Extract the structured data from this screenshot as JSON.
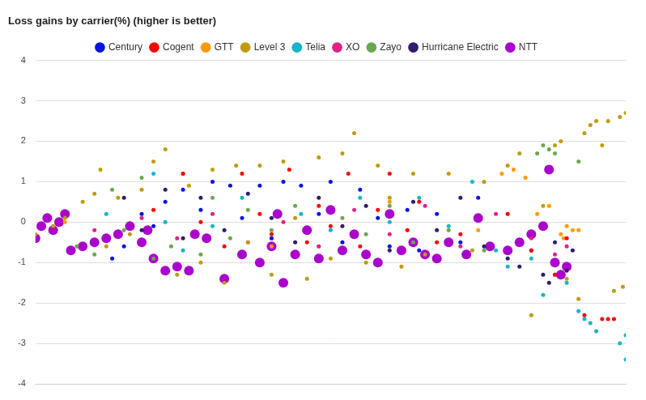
{
  "chart_data": {
    "type": "scatter",
    "title": "Loss gains by carrier(%) (higher is better)",
    "xlim": [
      0,
      100
    ],
    "ylim": [
      -4,
      4
    ],
    "yticks": [
      -4,
      -3,
      -2,
      -1,
      0,
      1,
      2,
      3,
      4
    ],
    "grid": true,
    "legend": "top",
    "tick_labels": "y",
    "series": [
      {
        "name": "Century",
        "color": "#0a14e0",
        "marker": "circle",
        "x": [
          13,
          15,
          18,
          20,
          22,
          25,
          28,
          30,
          33,
          35,
          38,
          40,
          42,
          45,
          48,
          50,
          52,
          55,
          58,
          60,
          63,
          65,
          68,
          72,
          75
        ],
        "values": [
          -0.9,
          -0.6,
          0.2,
          -0.1,
          0.5,
          0.8,
          0.3,
          1.0,
          0.9,
          0.1,
          0.9,
          -0.4,
          1.0,
          0.9,
          0.2,
          1.0,
          -0.5,
          0.8,
          0.1,
          -0.6,
          0.3,
          -0.7,
          0.2,
          -0.5,
          0.6
        ]
      },
      {
        "name": "Cogent",
        "color": "#ff0000",
        "marker": "circle",
        "x": [
          20,
          25,
          28,
          32,
          35,
          38,
          40,
          43,
          46,
          48,
          50,
          53,
          55,
          58,
          60,
          63,
          65,
          68,
          72,
          80,
          84,
          88,
          90,
          93,
          96,
          97,
          98
        ],
        "values": [
          0.3,
          1.2,
          0.0,
          -0.6,
          1.2,
          0.2,
          -0.3,
          1.3,
          -0.5,
          0.4,
          -0.1,
          1.2,
          -0.6,
          0.3,
          1.2,
          -0.2,
          0.5,
          -0.5,
          -0.3,
          0.2,
          -0.7,
          -1.3,
          -0.4,
          -2.3,
          -2.4,
          -2.4,
          -2.4
        ]
      },
      {
        "name": "GTT",
        "color": "#ff9900",
        "marker": "circle",
        "x": [
          5,
          40,
          60,
          75,
          79,
          81,
          83,
          85,
          87,
          89,
          89.5,
          90,
          91,
          92
        ],
        "values": [
          0.0,
          -0.6,
          0.5,
          -0.2,
          1.2,
          1.3,
          1.1,
          0.2,
          0.4,
          -0.3,
          -0.4,
          -0.1,
          -0.2,
          -0.2
        ]
      },
      {
        "name": "Level 3",
        "color": "#bf9b0b",
        "marker": "circle",
        "x": [
          0,
          3,
          5,
          8,
          10,
          11,
          12,
          14,
          16,
          18,
          20,
          22,
          24,
          26,
          28,
          30,
          32,
          34,
          36,
          38,
          40,
          42,
          44,
          46,
          48,
          50,
          52,
          54,
          56,
          58,
          60,
          62,
          64,
          66,
          70,
          74,
          76,
          80,
          82,
          84,
          86,
          88,
          89,
          90,
          92,
          93,
          94,
          95,
          96,
          97,
          98,
          99,
          99.5,
          100
        ],
        "values": [
          -0.3,
          -0.1,
          0.1,
          0.5,
          0.7,
          1.3,
          -0.6,
          0.6,
          -0.3,
          0.8,
          1.5,
          1.8,
          -1.3,
          0.9,
          -1.0,
          1.3,
          -1.5,
          1.4,
          -0.5,
          1.4,
          -1.3,
          1.5,
          0.1,
          -1.4,
          1.6,
          -0.9,
          1.7,
          2.2,
          -1.0,
          1.4,
          0.6,
          -1.1,
          1.2,
          -0.8,
          1.2,
          -0.7,
          1.0,
          1.4,
          1.7,
          -2.3,
          0.4,
          1.9,
          2.0,
          -1.4,
          -1.9,
          2.2,
          2.4,
          2.5,
          1.9,
          2.5,
          -1.7,
          2.6,
          -1.6,
          2.7
        ]
      },
      {
        "name": "Telia",
        "color": "#12b5cb",
        "marker": "circle",
        "x": [
          12,
          20,
          22,
          25,
          30,
          35,
          40,
          45,
          50,
          55,
          60,
          65,
          70,
          74,
          78,
          80,
          84,
          86,
          88,
          90,
          92,
          93,
          94,
          95,
          99,
          100,
          100
        ],
        "values": [
          0.2,
          1.2,
          0.0,
          -0.7,
          -0.1,
          0.6,
          -0.4,
          0.2,
          -0.2,
          0.6,
          0.0,
          0.6,
          -0.1,
          1.0,
          -0.7,
          -1.1,
          -0.9,
          -1.8,
          -1.3,
          -1.5,
          -2.2,
          -2.4,
          -2.5,
          -2.7,
          -3.0,
          -3.4,
          -2.8
        ]
      },
      {
        "name": "XO",
        "color": "#e0218a",
        "marker": "circle",
        "x": [
          10,
          18,
          24,
          30,
          36,
          42,
          48,
          54,
          60,
          66,
          72,
          78,
          84,
          88,
          90
        ],
        "values": [
          -0.2,
          0.1,
          -0.4,
          0.2,
          -0.5,
          0.0,
          -0.6,
          0.3,
          -0.3,
          0.4,
          -0.6,
          0.2,
          -0.4,
          -0.8,
          -0.6
        ]
      },
      {
        "name": "Zayo",
        "color": "#6aa84f",
        "marker": "circle",
        "x": [
          7,
          10,
          13,
          15,
          18,
          20,
          23,
          25,
          28,
          30,
          33,
          36,
          40,
          44,
          48,
          52,
          56,
          60,
          64,
          70,
          76,
          85,
          86,
          87,
          88,
          92
        ],
        "values": [
          -0.6,
          -0.8,
          0.8,
          -0.2,
          1.1,
          -0.9,
          -0.6,
          1.2,
          -0.8,
          0.6,
          -0.4,
          0.3,
          -0.2,
          0.4,
          -0.6,
          0.1,
          -0.3,
          0.4,
          -0.5,
          -0.2,
          -0.7,
          1.7,
          1.9,
          1.8,
          1.7,
          1.5
        ]
      },
      {
        "name": "Hurricane Electric",
        "color": "#311b73",
        "marker": "circle",
        "x": [
          15,
          18,
          22,
          25,
          28,
          32,
          36,
          40,
          44,
          48,
          52,
          56,
          60,
          64,
          68,
          72,
          76,
          80,
          82,
          84,
          86,
          87,
          88,
          90,
          91
        ],
        "values": [
          0.6,
          -0.2,
          0.8,
          -0.4,
          0.6,
          -0.2,
          0.7,
          0.1,
          -0.5,
          0.6,
          -0.1,
          0.4,
          -0.7,
          0.5,
          -0.2,
          0.6,
          -0.6,
          -0.9,
          -1.1,
          -0.7,
          -1.3,
          -1.5,
          -0.5,
          -1.2,
          -0.7
        ]
      },
      {
        "name": "NTT",
        "color": "#aa00cc",
        "marker": "large_circle",
        "x": [
          0,
          1,
          2,
          3,
          4,
          5,
          6,
          8,
          10,
          12,
          14,
          16,
          18,
          19,
          20,
          22,
          24,
          26,
          27,
          29,
          32,
          35,
          38,
          40,
          41,
          42,
          44,
          46,
          48,
          50,
          52,
          54,
          56,
          58,
          60,
          62,
          64,
          66,
          68,
          70,
          73,
          75,
          77,
          80,
          82,
          84,
          86,
          87,
          88,
          89,
          90
        ],
        "values": [
          -0.4,
          -0.1,
          0.1,
          -0.2,
          0.0,
          0.2,
          -0.7,
          -0.6,
          -0.5,
          -0.4,
          -0.3,
          -0.1,
          -0.5,
          -0.2,
          -0.9,
          -1.2,
          -1.1,
          -1.2,
          -0.3,
          -0.4,
          -1.4,
          -0.8,
          -1.0,
          -0.6,
          0.2,
          -1.5,
          -0.8,
          -0.2,
          -0.9,
          0.3,
          -0.7,
          -0.3,
          -0.8,
          -1.0,
          0.2,
          -0.7,
          -0.5,
          -0.8,
          -0.9,
          -0.5,
          -0.8,
          0.1,
          -0.6,
          -0.7,
          -0.5,
          -0.3,
          -0.1,
          1.3,
          -1.0,
          -1.3,
          -1.1
        ]
      }
    ]
  }
}
